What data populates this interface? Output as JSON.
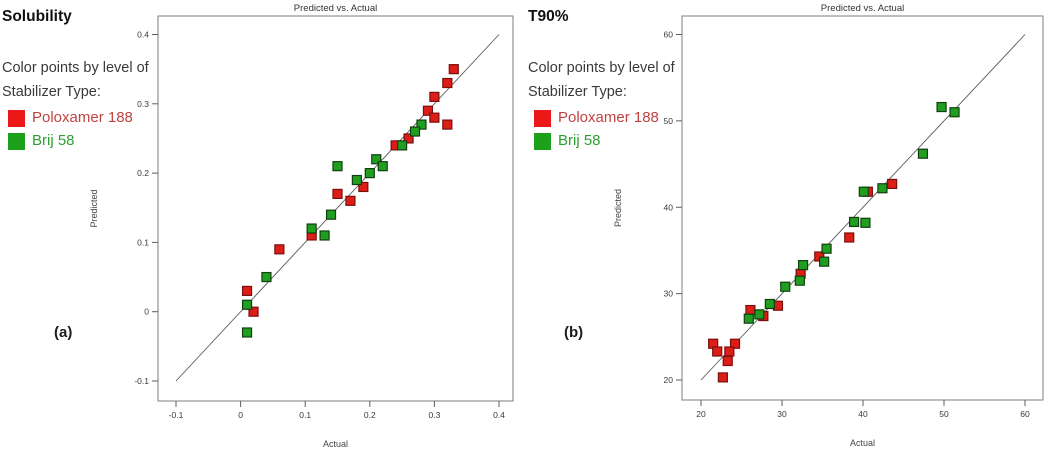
{
  "figure": {
    "background": "#ffffff",
    "panels": [
      {
        "header": "Solubility",
        "caption_label": "(a)",
        "legend": {
          "line1": "Color points by level of",
          "line2": "Stabilizer Type:",
          "items": [
            {
              "label": "Poloxamer 188",
              "swatch_color": "#ed1818",
              "text_color": "#bf4340"
            },
            {
              "label": "Brij 58",
              "swatch_color": "#1da11d",
              "text_color": "#2e9d32"
            }
          ]
        }
      },
      {
        "header": "T90%",
        "caption_label": "(b)",
        "legend": {
          "line1": "Color points by level of",
          "line2": "Stabilizer Type:",
          "items": [
            {
              "label": "Poloxamer 188",
              "swatch_color": "#ed1818",
              "text_color": "#bf4340"
            },
            {
              "label": "Brij 58",
              "swatch_color": "#1da11d",
              "text_color": "#2e9d32"
            }
          ]
        }
      }
    ]
  },
  "chart_data": [
    {
      "type": "scatter",
      "title": "Predicted vs. Actual",
      "xlabel": "Actual",
      "ylabel": "Predicted",
      "xlim": [
        -0.1,
        0.4
      ],
      "ylim": [
        -0.1,
        0.4
      ],
      "xticks": [
        -0.1,
        0,
        0.1,
        0.2,
        0.3,
        0.4
      ],
      "xtick_labels": [
        "-0.1",
        "0",
        "0.1",
        "0.2",
        "0.3",
        "0.4"
      ],
      "yticks": [
        -0.1,
        0,
        0.1,
        0.2,
        0.3,
        0.4
      ],
      "ytick_labels": [
        "-0.1",
        "0",
        "0.1",
        "0.2",
        "0.3",
        "0.4"
      ],
      "grid": false,
      "marker": "square",
      "identity_line": {
        "from": [
          -0.1,
          -0.1
        ],
        "to": [
          0.4,
          0.4
        ]
      },
      "series": [
        {
          "name": "Poloxamer 188",
          "fill": "#dd1d18",
          "stroke": "#7a100c",
          "points": [
            [
              0.33,
              0.35
            ],
            [
              0.32,
              0.33
            ],
            [
              0.3,
              0.31
            ],
            [
              0.29,
              0.29
            ],
            [
              0.3,
              0.28
            ],
            [
              0.32,
              0.27
            ],
            [
              0.26,
              0.25
            ],
            [
              0.24,
              0.24
            ],
            [
              0.19,
              0.18
            ],
            [
              0.15,
              0.17
            ],
            [
              0.17,
              0.16
            ],
            [
              0.11,
              0.11
            ],
            [
              0.06,
              0.09
            ],
            [
              0.01,
              0.03
            ],
            [
              0.02,
              0.0
            ]
          ]
        },
        {
          "name": "Brij 58",
          "fill": "#1f9e20",
          "stroke": "#113f0f",
          "points": [
            [
              0.28,
              0.27
            ],
            [
              0.27,
              0.26
            ],
            [
              0.25,
              0.24
            ],
            [
              0.21,
              0.22
            ],
            [
              0.22,
              0.21
            ],
            [
              0.2,
              0.2
            ],
            [
              0.18,
              0.19
            ],
            [
              0.15,
              0.21
            ],
            [
              0.14,
              0.14
            ],
            [
              0.13,
              0.11
            ],
            [
              0.11,
              0.12
            ],
            [
              0.04,
              0.05
            ],
            [
              0.01,
              0.01
            ],
            [
              0.01,
              -0.03
            ]
          ]
        }
      ]
    },
    {
      "type": "scatter",
      "title": "Predicted vs. Actual",
      "xlabel": "Actual",
      "ylabel": "Predicted",
      "xlim": [
        20,
        60
      ],
      "ylim": [
        20,
        60
      ],
      "xticks": [
        20,
        30,
        40,
        50,
        60
      ],
      "xtick_labels": [
        "20",
        "30",
        "40",
        "50",
        "60"
      ],
      "yticks": [
        20,
        30,
        40,
        50,
        60
      ],
      "ytick_labels": [
        "20",
        "30",
        "40",
        "50",
        "60"
      ],
      "grid": false,
      "marker": "square",
      "identity_line": {
        "from": [
          20,
          20
        ],
        "to": [
          60,
          60
        ]
      },
      "series": [
        {
          "name": "Poloxamer 188",
          "fill": "#dd1d18",
          "stroke": "#7a100c",
          "points": [
            [
              21.5,
              24.2
            ],
            [
              22.0,
              23.3
            ],
            [
              24.2,
              24.2
            ],
            [
              23.5,
              23.3
            ],
            [
              23.3,
              22.2
            ],
            [
              22.7,
              20.3
            ],
            [
              26.1,
              28.1
            ],
            [
              27.7,
              27.4
            ],
            [
              29.5,
              28.6
            ],
            [
              32.3,
              32.3
            ],
            [
              34.6,
              34.3
            ],
            [
              38.3,
              36.5
            ],
            [
              40.6,
              41.8
            ],
            [
              43.6,
              42.7
            ]
          ]
        },
        {
          "name": "Brij 58",
          "fill": "#1f9e20",
          "stroke": "#113f0f",
          "points": [
            [
              25.9,
              27.1
            ],
            [
              27.2,
              27.6
            ],
            [
              28.5,
              28.8
            ],
            [
              30.4,
              30.8
            ],
            [
              32.2,
              31.5
            ],
            [
              32.6,
              33.3
            ],
            [
              35.2,
              33.7
            ],
            [
              35.5,
              35.2
            ],
            [
              38.9,
              38.3
            ],
            [
              40.3,
              38.2
            ],
            [
              40.1,
              41.8
            ],
            [
              42.4,
              42.2
            ],
            [
              47.4,
              46.2
            ],
            [
              49.7,
              51.6
            ],
            [
              51.3,
              51.0
            ]
          ]
        }
      ]
    }
  ]
}
